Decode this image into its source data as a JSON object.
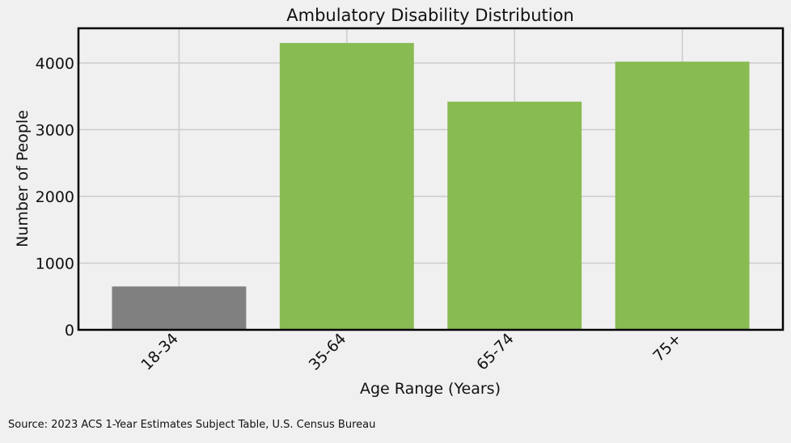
{
  "chart_data": {
    "type": "bar",
    "title": "Ambulatory Disability Distribution",
    "xlabel": "Age Range (Years)",
    "ylabel": "Number of People",
    "categories": [
      "18-34",
      "35-64",
      "65-74",
      "75+"
    ],
    "values": [
      650,
      4300,
      3420,
      4020
    ],
    "colors": [
      "#808080",
      "#88bb52",
      "#88bb52",
      "#88bb52"
    ],
    "ylim": [
      0,
      4520
    ],
    "yticks": [
      0,
      1000,
      2000,
      3000,
      4000
    ],
    "grid": true,
    "legend": "none"
  },
  "source": "Source: 2023 ACS 1-Year Estimates Subject Table, U.S. Census Bureau",
  "style": {
    "background": "#f0f0f0",
    "grid_color": "#cbcbcb",
    "axis_color": "#000000"
  }
}
